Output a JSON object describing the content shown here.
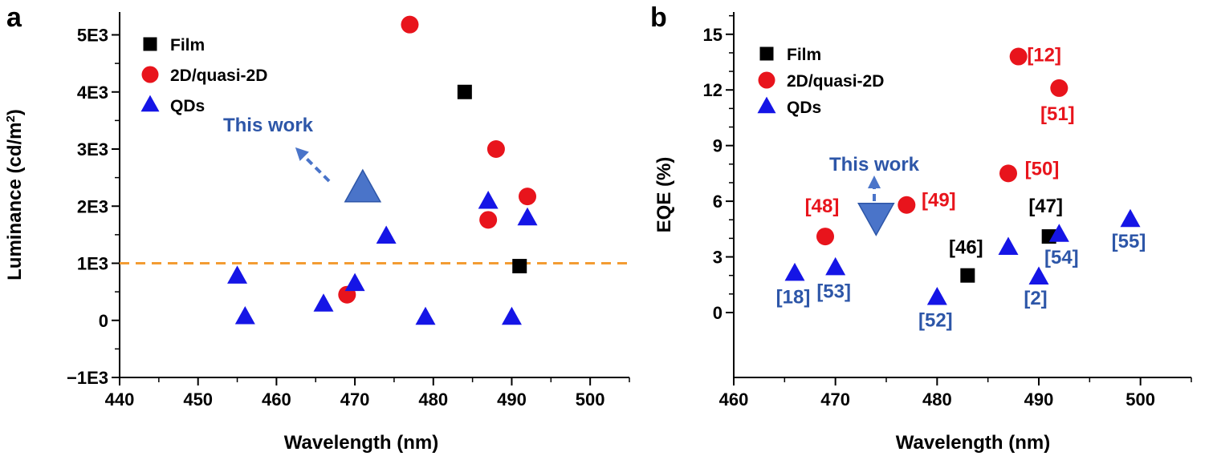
{
  "chart_data": [
    {
      "type": "scatter",
      "panel_label": "a",
      "xlabel": "Wavelength (nm)",
      "ylabel": "Luminance (cd/m",
      "ylabel_superscript": "2",
      "ylabel_suffix": ")",
      "xlim": [
        440,
        505
      ],
      "ylim": [
        -1000,
        5400
      ],
      "x_ticks": [
        440,
        450,
        460,
        470,
        480,
        490,
        500
      ],
      "y_ticks": [
        {
          "value": -1000,
          "label": "−1E3"
        },
        {
          "value": 0,
          "label": "0"
        },
        {
          "value": 1000,
          "label": "1E3"
        },
        {
          "value": 2000,
          "label": "2E3"
        },
        {
          "value": 3000,
          "label": "3E3"
        },
        {
          "value": 4000,
          "label": "4E3"
        },
        {
          "value": 5000,
          "label": "5E3"
        }
      ],
      "legend": [
        "Film",
        "2D/quasi-2D",
        "QDs"
      ],
      "reference_line": {
        "y": 1000,
        "color": "#f39c33"
      },
      "series": [
        {
          "name": "Film",
          "marker": "square",
          "color": "#000000",
          "points": [
            {
              "x": 484,
              "y": 4000
            },
            {
              "x": 491,
              "y": 950
            }
          ]
        },
        {
          "name": "2D/quasi-2D",
          "marker": "circle",
          "color": "#e8141c",
          "points": [
            {
              "x": 477,
              "y": 5180
            },
            {
              "x": 488,
              "y": 3000
            },
            {
              "x": 492,
              "y": 2170
            },
            {
              "x": 487,
              "y": 1760
            },
            {
              "x": 469,
              "y": 450
            }
          ]
        },
        {
          "name": "QDs",
          "marker": "triangle-up",
          "color": "#1515e6",
          "points": [
            {
              "x": 487,
              "y": 2080
            },
            {
              "x": 492,
              "y": 1790
            },
            {
              "x": 474,
              "y": 1470
            },
            {
              "x": 455,
              "y": 770
            },
            {
              "x": 470,
              "y": 640
            },
            {
              "x": 466,
              "y": 280
            },
            {
              "x": 456,
              "y": 60
            },
            {
              "x": 479,
              "y": 50
            },
            {
              "x": 490,
              "y": 50
            }
          ]
        }
      ],
      "highlight": {
        "label": "This work",
        "x": 471,
        "y": 2300,
        "marker": "triangle-up",
        "color": "#4a74c9",
        "text_color": "#2d56a8"
      }
    },
    {
      "type": "scatter",
      "panel_label": "b",
      "xlabel": "Wavelength (nm)",
      "ylabel": "EQE (%)",
      "xlim": [
        460,
        505
      ],
      "ylim": [
        -3.5,
        16.2
      ],
      "x_ticks": [
        460,
        470,
        480,
        490,
        500
      ],
      "y_ticks": [
        {
          "value": 0,
          "label": "0"
        },
        {
          "value": 3,
          "label": "3"
        },
        {
          "value": 6,
          "label": "6"
        },
        {
          "value": 9,
          "label": "9"
        },
        {
          "value": 12,
          "label": "12"
        },
        {
          "value": 15,
          "label": "15"
        }
      ],
      "legend": [
        "Film",
        "2D/quasi-2D",
        "QDs"
      ],
      "series": [
        {
          "name": "Film",
          "marker": "square",
          "color": "#000000",
          "points": [
            {
              "x": 483,
              "y": 2.0,
              "ref": "[46]",
              "ref_color": "#000000"
            },
            {
              "x": 491,
              "y": 4.1,
              "ref": "[47]",
              "ref_color": "#000000"
            }
          ]
        },
        {
          "name": "2D/quasi-2D",
          "marker": "circle",
          "color": "#e8141c",
          "points": [
            {
              "x": 488,
              "y": 13.8,
              "ref": "[12]",
              "ref_color": "#e8141c"
            },
            {
              "x": 492,
              "y": 12.1,
              "ref": "[51]",
              "ref_color": "#e8141c"
            },
            {
              "x": 487,
              "y": 7.5,
              "ref": "[50]",
              "ref_color": "#e8141c"
            },
            {
              "x": 477,
              "y": 5.8,
              "ref": "[49]",
              "ref_color": "#e8141c"
            },
            {
              "x": 469,
              "y": 4.1,
              "ref": "[48]",
              "ref_color": "#e8141c"
            }
          ]
        },
        {
          "name": "QDs",
          "marker": "triangle-up",
          "color": "#1515e6",
          "points": [
            {
              "x": 466,
              "y": 2.1,
              "ref": "[18]",
              "ref_color": "#2d56a8"
            },
            {
              "x": 470,
              "y": 2.4,
              "ref": "[53]",
              "ref_color": "#2d56a8"
            },
            {
              "x": 480,
              "y": 0.8,
              "ref": "[52]",
              "ref_color": "#2d56a8"
            },
            {
              "x": 490,
              "y": 1.9,
              "ref": "[2]",
              "ref_color": "#2d56a8"
            },
            {
              "x": 487,
              "y": 3.5,
              "ref": "",
              "ref_color": "#2d56a8"
            },
            {
              "x": 492,
              "y": 4.2,
              "ref": "[54]",
              "ref_color": "#2d56a8"
            },
            {
              "x": 499,
              "y": 5.0,
              "ref": "[55]",
              "ref_color": "#2d56a8"
            }
          ]
        }
      ],
      "highlight": {
        "label": "This work",
        "x": 474,
        "y": 5.2,
        "marker": "triangle-down",
        "color": "#4a74c9",
        "text_color": "#2d56a8"
      }
    }
  ]
}
